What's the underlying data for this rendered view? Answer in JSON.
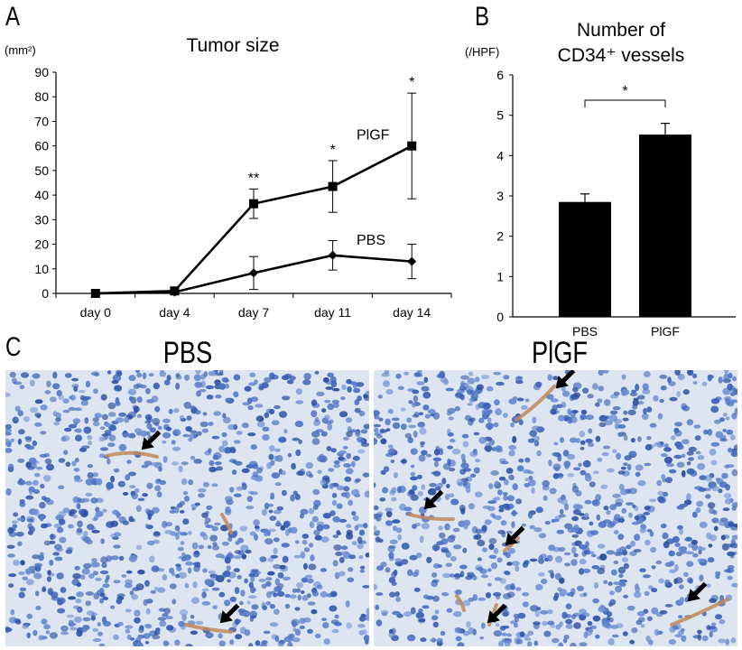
{
  "panels": {
    "a": "A",
    "b": "B",
    "c": "C"
  },
  "chart_data": [
    {
      "type": "line",
      "title": "Tumor size",
      "ylabel_unit": "(mm²)",
      "categories": [
        "day 0",
        "day 4",
        "day 7",
        "day 11",
        "day 14"
      ],
      "ylim": [
        0,
        90
      ],
      "yticks": [
        0,
        10,
        20,
        30,
        40,
        50,
        60,
        70,
        80,
        90
      ],
      "series": [
        {
          "name": "PlGF",
          "marker": "square",
          "values": [
            0,
            1,
            36.5,
            43.5,
            60
          ],
          "errors": [
            0,
            0.5,
            6,
            10.5,
            21.5
          ],
          "significance": [
            "",
            "",
            "**",
            "*",
            "*"
          ]
        },
        {
          "name": "PBS",
          "marker": "diamond",
          "values": [
            0,
            0.5,
            8.3,
            15.5,
            13
          ],
          "errors": [
            0,
            0.3,
            6.7,
            6,
            7
          ],
          "significance": [
            "",
            "",
            "",
            "",
            ""
          ]
        }
      ]
    },
    {
      "type": "bar",
      "title_line1": "Number of",
      "title_line2": "CD34⁺ vessels",
      "ylabel_unit": "(/HPF)",
      "categories": [
        "PBS",
        "PlGF"
      ],
      "values": [
        2.85,
        4.52
      ],
      "errors": [
        0.2,
        0.28
      ],
      "ylim": [
        0,
        6
      ],
      "yticks": [
        0,
        1,
        2,
        3,
        4,
        5,
        6
      ],
      "significance": "*",
      "bar_color": "#000000"
    }
  ],
  "micrographs": {
    "left_title": "PBS",
    "right_title": "PlGF",
    "stain_color": "#c08a5a",
    "nuclei_color": "#3d63b8",
    "background_color": "#dde5f1"
  }
}
